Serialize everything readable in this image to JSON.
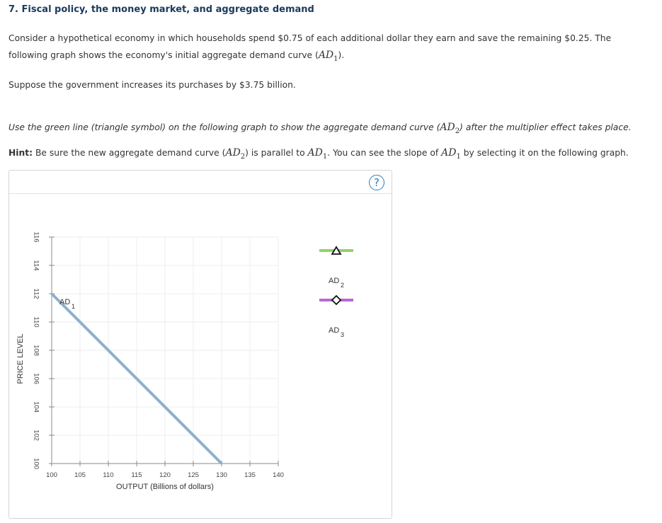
{
  "question": {
    "number_title": "7. Fiscal policy, the money market, and aggregate demand",
    "para1_text": "Consider a hypothetical economy in which households spend $0.75 of each additional dollar they earn and save the remaining $0.25. The following graph shows the economy's initial aggregate demand curve (",
    "para1_math": "AD",
    "para1_sub": "1",
    "para1_end": ").",
    "para2_text": "Suppose the government increases its purchases by $3.75 billion.",
    "instruction_text": "Use the green line (triangle symbol) on the following graph to show the aggregate demand curve (",
    "instruction_math": "AD",
    "instruction_sub": "2",
    "instruction_end": ") after the multiplier effect takes place.",
    "hint_label": "Hint:",
    "hint_text_1": " Be sure the new aggregate demand curve (",
    "hint_math_1": "AD",
    "hint_sub_1": "2",
    "hint_text_2": ") is parallel to ",
    "hint_math_2": "AD",
    "hint_sub_2": "1",
    "hint_text_3": ". You can see the slope of ",
    "hint_math_3": "AD",
    "hint_sub_3": "1",
    "hint_text_4": " by selecting it on the following graph."
  },
  "help_label": "?",
  "chart_data": {
    "type": "line",
    "xlabel": "OUTPUT (Billions of dollars)",
    "ylabel": "PRICE LEVEL",
    "xlim": [
      100,
      140
    ],
    "ylim": [
      100,
      116
    ],
    "x_ticks": [
      100,
      105,
      110,
      115,
      120,
      125,
      130,
      135,
      140
    ],
    "y_ticks": [
      100,
      102,
      104,
      106,
      108,
      110,
      112,
      114,
      116
    ],
    "grid": true,
    "series": [
      {
        "name": "AD",
        "name_sub": "1",
        "points": [
          [
            100,
            112
          ],
          [
            130,
            100
          ]
        ],
        "color": "#8fb0cc"
      }
    ],
    "legend_tools": [
      {
        "name": "AD",
        "name_sub": "2",
        "symbol": "triangle",
        "color": "#8ed468"
      },
      {
        "name": "AD",
        "name_sub": "3",
        "symbol": "diamond",
        "color": "#b56ad4"
      }
    ]
  }
}
